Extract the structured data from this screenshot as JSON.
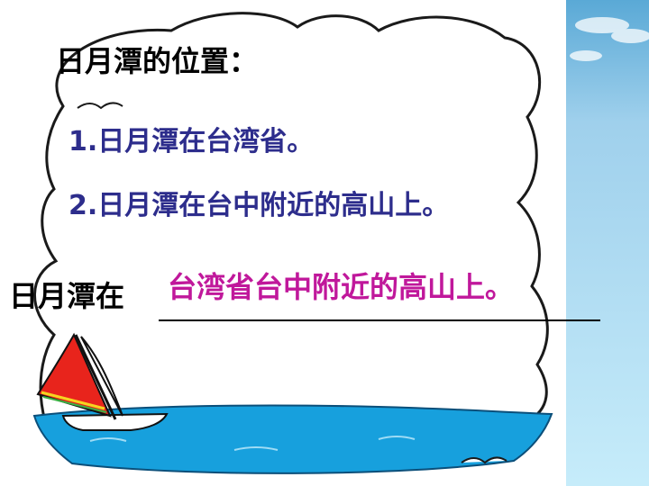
{
  "slide": {
    "title": "日月潭的位置：",
    "items": [
      {
        "label": "1.日月潭在台湾省。"
      },
      {
        "label": "2.日月潭在台中附近的高山上。"
      }
    ],
    "fill_in": {
      "prefix": "日月潭在",
      "answer": "台湾省台中附近的高山上。"
    }
  },
  "colors": {
    "item_text": "#2d2d8c",
    "answer_text": "#c0189b",
    "water": "#17a0dd",
    "sail": "#e8241c",
    "sky_right": "#bfe7f7"
  }
}
